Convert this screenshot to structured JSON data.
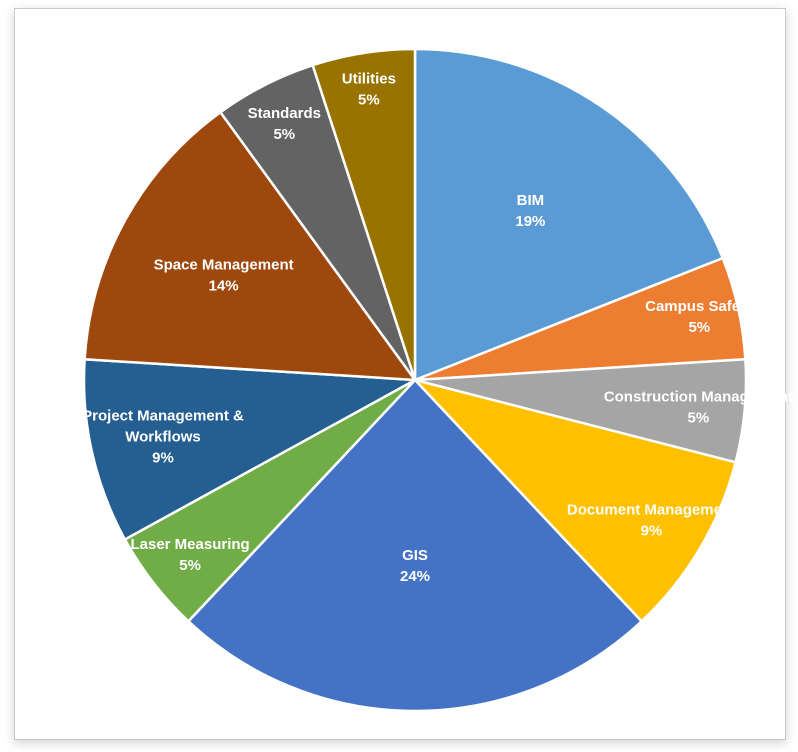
{
  "chart_data": {
    "type": "pie",
    "title": "",
    "start_angle_deg": 0,
    "direction": "clockwise",
    "slices": [
      {
        "label": "BIM",
        "label_lines": [
          "BIM"
        ],
        "value": 19,
        "percent_text": "19%",
        "color": "#5B9BD5"
      },
      {
        "label": "Campus Safety",
        "label_lines": [
          "Campus Safety"
        ],
        "value": 5,
        "percent_text": "5%",
        "color": "#ED7D31"
      },
      {
        "label": "Construction Management",
        "label_lines": [
          "Construction Management"
        ],
        "value": 5,
        "percent_text": "5%",
        "color": "#A5A5A5"
      },
      {
        "label": "Document Management",
        "label_lines": [
          "Document Management"
        ],
        "value": 9,
        "percent_text": "9%",
        "color": "#FFC000"
      },
      {
        "label": "GIS",
        "label_lines": [
          "GIS"
        ],
        "value": 24,
        "percent_text": "24%",
        "color": "#4472C4"
      },
      {
        "label": "Laser Measuring",
        "label_lines": [
          "Laser Measuring"
        ],
        "value": 5,
        "percent_text": "5%",
        "color": "#70AD47"
      },
      {
        "label": "Project Management & Workflows",
        "label_lines": [
          "Project Management &",
          "Workflows"
        ],
        "value": 9,
        "percent_text": "9%",
        "color": "#255E91"
      },
      {
        "label": "Space Management",
        "label_lines": [
          "Space Management"
        ],
        "value": 14,
        "percent_text": "14%",
        "color": "#9E480E"
      },
      {
        "label": "Standards",
        "label_lines": [
          "Standards"
        ],
        "value": 5,
        "percent_text": "5%",
        "color": "#636363"
      },
      {
        "label": "Utilities",
        "label_lines": [
          "Utilities"
        ],
        "value": 5,
        "percent_text": "5%",
        "color": "#997300"
      }
    ]
  }
}
